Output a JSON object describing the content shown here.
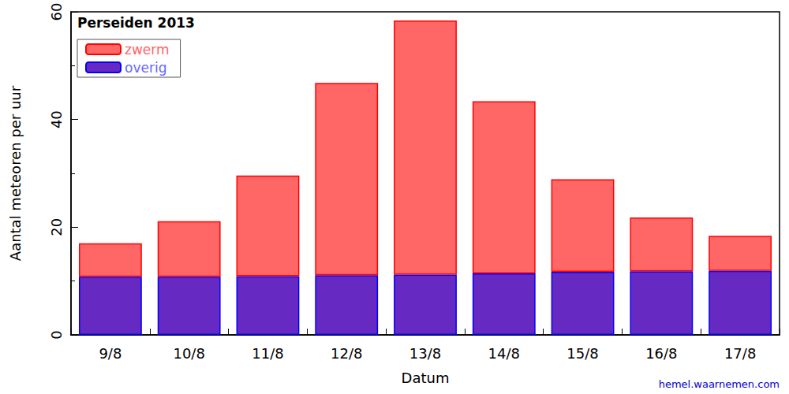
{
  "chart_data": {
    "type": "bar",
    "title": "Perseiden 2013",
    "x_label": "Datum",
    "y_label": "Aantal meteoren per uur",
    "annotations": [
      "hemel.waarnemen.com"
    ],
    "categories": [
      "9/8",
      "10/8",
      "11/8",
      "12/8",
      "13/8",
      "14/8",
      "15/8",
      "16/8",
      "17/8"
    ],
    "series": [
      {
        "name": "zwerm",
        "color": "#ff6666",
        "values": [
          6.2,
          10.3,
          18.7,
          35.7,
          47.2,
          32.0,
          17.2,
          10.0,
          6.5
        ]
      },
      {
        "name": "overig",
        "color": "#6629c2",
        "values": [
          10.8,
          10.8,
          10.9,
          11.1,
          11.2,
          11.4,
          11.7,
          11.8,
          11.9
        ]
      }
    ],
    "stacked": true,
    "ylim": [
      0,
      60
    ],
    "yticks": [
      0,
      20,
      40,
      60
    ],
    "legend": "upper left",
    "grid": false
  }
}
